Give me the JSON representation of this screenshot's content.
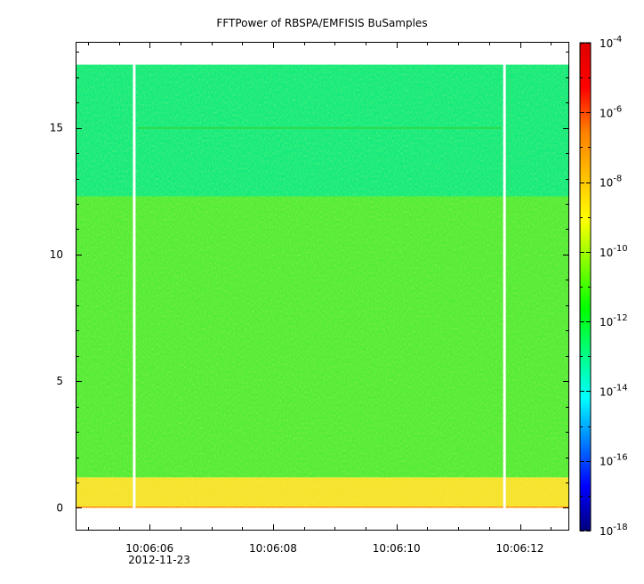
{
  "chart_data": {
    "type": "heatmap",
    "title": "FFTPower of RBSPA/EMFISIS  BuSamples",
    "xlabel": "",
    "ylabel": "",
    "date_label": "2012-11-23",
    "x_tick_labels": [
      "10:06:06",
      "10:06:08",
      "10:06:10",
      "10:06:12"
    ],
    "xlim_seconds_of_10_06": [
      4.8,
      12.8
    ],
    "y_ticks": [
      0,
      5,
      10,
      15
    ],
    "ylim": [
      -0.9,
      18.4
    ],
    "colorbar": {
      "scale": "log",
      "range": [
        1e-18,
        0.0001
      ],
      "tick_labels": [
        {
          "base": "10",
          "exp": "-4",
          "value": -4
        },
        {
          "base": "10",
          "exp": "-6",
          "value": -6
        },
        {
          "base": "10",
          "exp": "-8",
          "value": -8
        },
        {
          "base": "10",
          "exp": "-10",
          "value": -10
        },
        {
          "base": "10",
          "exp": "-12",
          "value": -12
        },
        {
          "base": "10",
          "exp": "-14",
          "value": -14
        },
        {
          "base": "10",
          "exp": "-16",
          "value": -16
        },
        {
          "base": "10",
          "exp": "-18",
          "value": -18
        }
      ],
      "colors": [
        "#00007f",
        "#0000ff",
        "#007fff",
        "#00ffff",
        "#00ff7f",
        "#00ff00",
        "#7fff00",
        "#ffff00",
        "#ffbf00",
        "#ff7f00",
        "#ff0000",
        "#df0000"
      ]
    },
    "data_extent": {
      "y_max": 17.5
    },
    "bands": [
      {
        "y_from": 0.0,
        "y_to": 0.05,
        "log10_power": -6.8,
        "color": "#ff7f00"
      },
      {
        "y_from": 0.05,
        "y_to": 1.2,
        "log10_power": -8.2,
        "color": "#f5e22c"
      },
      {
        "y_from": 1.2,
        "y_to": 12.3,
        "log10_power": -10.3,
        "color": "#52eb36"
      },
      {
        "y_from": 12.3,
        "y_to": 17.5,
        "log10_power": -11.6,
        "color": "#13ea7c"
      }
    ],
    "spectral_line": {
      "y": 15.0,
      "x_from": 5.8,
      "x_to": 11.7,
      "color": "#2dd94a"
    },
    "data_gaps_x": [
      5.75,
      11.75
    ]
  }
}
